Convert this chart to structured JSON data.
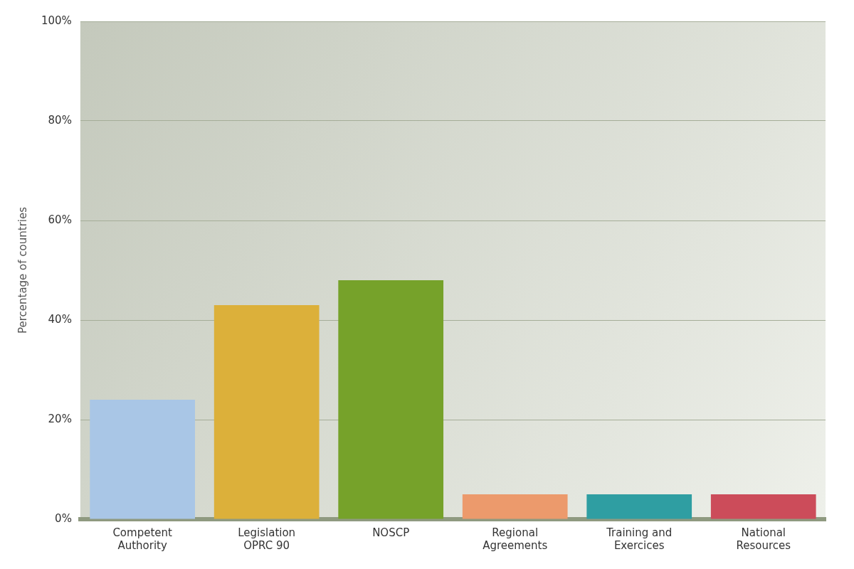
{
  "chart_data": {
    "type": "bar",
    "ylabel": "Percentage of countries",
    "categories": [
      "Competent\nAuthority",
      "Legislation\nOPRC 90",
      "NOSCP",
      "Regional\nAgreements",
      "Training and\nExercices",
      "National\nResources"
    ],
    "values": [
      24,
      43,
      48,
      5,
      5,
      5
    ],
    "colors": [
      "#a9c6e6",
      "#dcb03a",
      "#76a22a",
      "#ec9a6c",
      "#2f9ea2",
      "#cc4c5a"
    ],
    "ylim": [
      0,
      100
    ],
    "yticks": [
      {
        "value": 0,
        "label": "0%"
      },
      {
        "value": 20,
        "label": "20%"
      },
      {
        "value": 40,
        "label": "40%"
      },
      {
        "value": 60,
        "label": "60%"
      },
      {
        "value": 80,
        "label": "80%"
      },
      {
        "value": 100,
        "label": "100%"
      }
    ],
    "grid": "y",
    "legend": false
  }
}
